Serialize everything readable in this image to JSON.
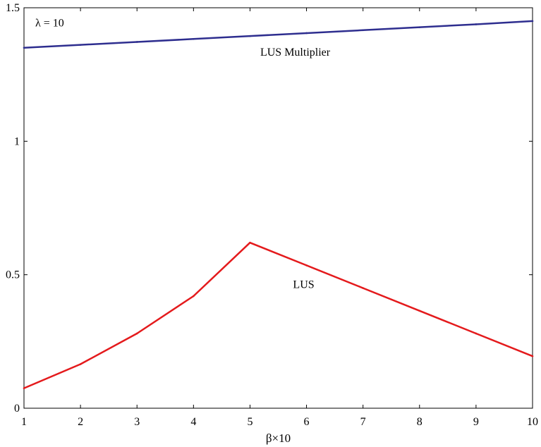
{
  "chart_data": {
    "type": "line",
    "x": [
      1,
      2,
      3,
      4,
      5,
      6,
      7,
      8,
      9,
      10
    ],
    "xlabel": "β×10",
    "ylabel": "",
    "xlim": [
      1,
      10
    ],
    "ylim": [
      0,
      1.5
    ],
    "x_ticks": [
      "1",
      "2",
      "3",
      "4",
      "5",
      "6",
      "7",
      "8",
      "9",
      "10"
    ],
    "y_ticks": [
      "0",
      "0.5",
      "1",
      "1.5"
    ],
    "grid": false,
    "series": [
      {
        "color": "#2e2e8f",
        "values": [
          1.35,
          1.361,
          1.372,
          1.383,
          1.394,
          1.405,
          1.416,
          1.427,
          1.438,
          1.45
        ]
      },
      {
        "color": "#e41a1c",
        "values": [
          0.075,
          0.165,
          0.28,
          0.42,
          0.62,
          0.535,
          0.45,
          0.365,
          0.28,
          0.195
        ]
      }
    ],
    "annotations": [
      {
        "id": "lambda",
        "text": "λ = 10",
        "x": 1.2,
        "y": 1.43,
        "anchor": "start"
      },
      {
        "id": "multiplier",
        "text": "LUS Multiplier",
        "x": 5.8,
        "y": 1.32,
        "anchor": "middle"
      },
      {
        "id": "lus",
        "text": "LUS",
        "x": 5.95,
        "y": 0.45,
        "anchor": "middle"
      }
    ]
  }
}
